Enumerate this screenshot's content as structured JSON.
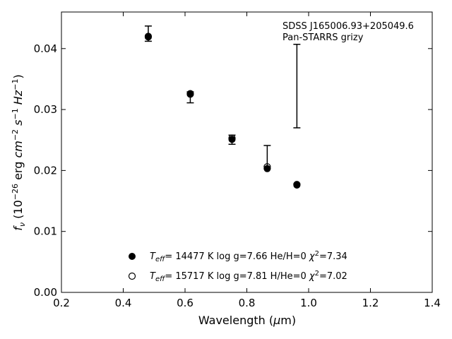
{
  "chart_data": {
    "type": "scatter",
    "xlabel": "Wavelength (μm)",
    "ylabel": "f_ν (10^-26 erg cm^-2 s^-1 Hz^-1)",
    "xlim": [
      0.2,
      1.4
    ],
    "ylim": [
      0.0,
      0.046
    ],
    "xticks": [
      "0.2",
      "0.4",
      "0.6",
      "0.8",
      "1.0",
      "1.2",
      "1.4"
    ],
    "yticks": [
      "0.00",
      "0.01",
      "0.02",
      "0.03",
      "0.04"
    ],
    "grid": false,
    "annotation": [
      "SDSS J165006.93+205049.6",
      "Pan-STARRS grizy"
    ],
    "legend_position": "lower-center",
    "observed": {
      "x": [
        0.481,
        0.617,
        0.752,
        0.866,
        0.962
      ],
      "y_low": [
        0.0412,
        0.0311,
        0.0243,
        0.0203,
        0.027
      ],
      "y_high": [
        0.0437,
        0.0329,
        0.0258,
        0.0241,
        0.0407
      ]
    },
    "series": [
      {
        "name": "Teff= 14477 K  log g=7.66  He/H=0  χ2=7.34",
        "label": {
          "teff": "= 14477 K  log g=7.66  He/H=0  ",
          "chi": "=7.34"
        },
        "marker": "filled",
        "x": [
          0.481,
          0.617,
          0.752,
          0.866,
          0.962
        ],
        "y": [
          0.0419,
          0.0325,
          0.0251,
          0.0203,
          0.0176
        ]
      },
      {
        "name": "Teff= 15717 K  log g=7.81  H/He=0  χ2=7.02",
        "label": {
          "teff": "= 15717 K  log g=7.81  H/He=0  ",
          "chi": "=7.02"
        },
        "marker": "open",
        "x": [
          0.481,
          0.617,
          0.752,
          0.866,
          0.962
        ],
        "y": [
          0.042,
          0.0326,
          0.0253,
          0.0206,
          0.0177
        ]
      }
    ]
  }
}
